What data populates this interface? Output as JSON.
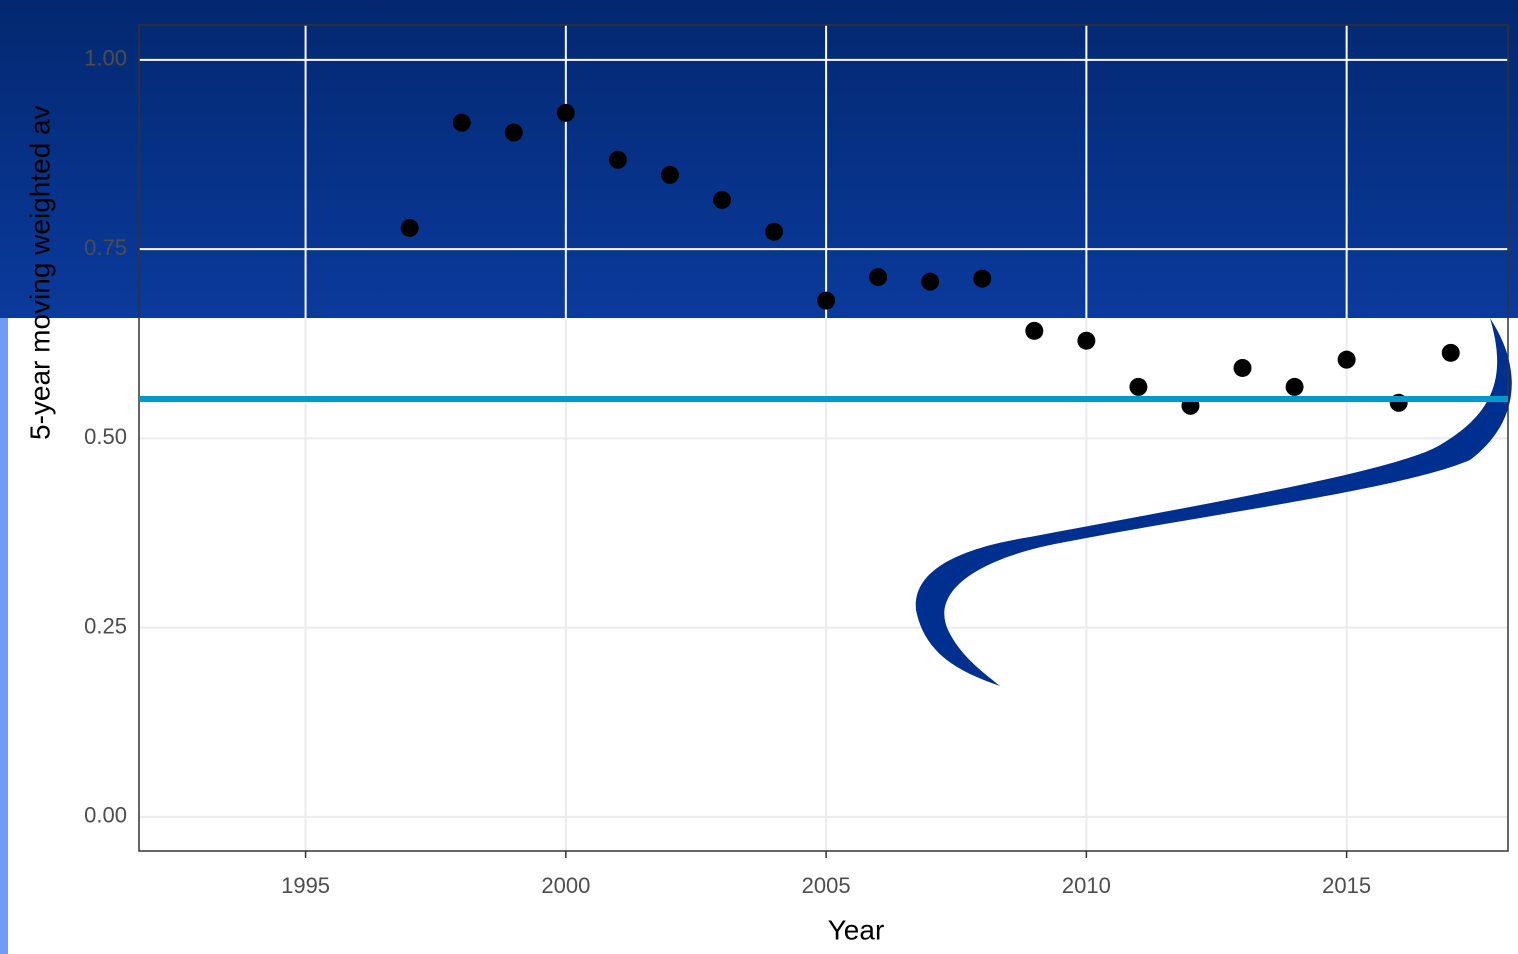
{
  "chart_data": {
    "type": "scatter",
    "x_label": "Year",
    "y_label": "5-year moving weighted av",
    "x": [
      1997,
      1998,
      1999,
      2000,
      2001,
      2002,
      2003,
      2004,
      2005,
      2006,
      2007,
      2008,
      2009,
      2010,
      2011,
      2012,
      2013,
      2014,
      2015,
      2016,
      2017
    ],
    "values": [
      0.778,
      0.917,
      0.904,
      0.93,
      0.868,
      0.848,
      0.815,
      0.773,
      0.682,
      0.713,
      0.707,
      0.711,
      0.642,
      0.629,
      0.568,
      0.543,
      0.593,
      0.568,
      0.604,
      0.547,
      0.613
    ],
    "color": "#000000",
    "reference_line": 0.552,
    "reference_color": "#0099cc",
    "xlim": [
      1991.8,
      2018.1
    ],
    "ylim": [
      -0.045,
      1.046
    ],
    "xticks": [
      1995,
      2000,
      2005,
      2010,
      2015
    ],
    "yticks": [
      {
        "value": 0,
        "label": "0.00"
      },
      {
        "value": 0.25,
        "label": "0.25"
      },
      {
        "value": 0.5,
        "label": "0.50"
      },
      {
        "value": 0.75,
        "label": "0.75"
      },
      {
        "value": 1,
        "label": "1.00"
      }
    ],
    "grid": true
  }
}
